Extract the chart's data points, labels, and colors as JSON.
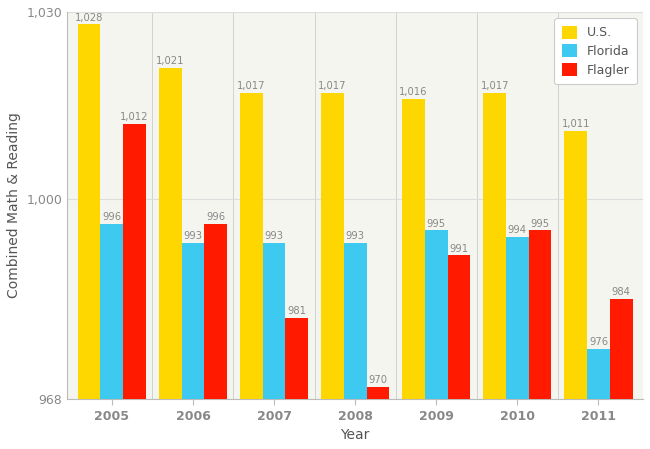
{
  "years": [
    "2005",
    "2006",
    "2007",
    "2008",
    "2009",
    "2010",
    "2011"
  ],
  "us_values": [
    1028,
    1021,
    1017,
    1017,
    1016,
    1017,
    1011
  ],
  "florida_values": [
    996,
    993,
    993,
    993,
    995,
    994,
    976
  ],
  "flagler_values": [
    1012,
    996,
    981,
    970,
    991,
    995,
    984
  ],
  "us_color": "#FFD700",
  "florida_color": "#3EC9F0",
  "flagler_color": "#FF1A00",
  "xlabel": "Year",
  "ylabel": "Combined Math & Reading",
  "ylim_min": 968,
  "ylim_max": 1030,
  "legend_labels": [
    "U.S.",
    "Florida",
    "Flagler"
  ],
  "bar_width": 0.28,
  "background_color": "#FFFFFF",
  "plot_bg_color": "#F5F5F0",
  "grid_color": "#DDDDDD",
  "label_fontsize": 7.2,
  "axis_label_fontsize": 10,
  "tick_fontsize": 9,
  "label_color": "#888888",
  "tick_label_color": "#888888"
}
